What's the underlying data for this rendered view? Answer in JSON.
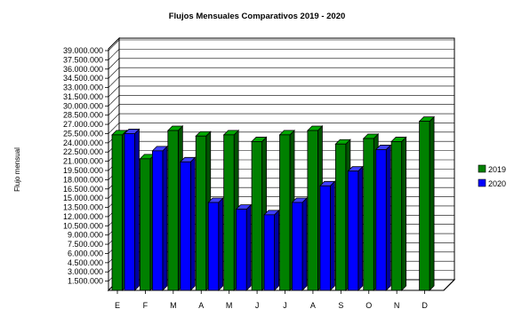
{
  "chart_data": {
    "type": "bar",
    "title": "Flujos Mensuales Comparativos 2019 - 2020",
    "ylabel": "Flujo mensual",
    "xlabel": "",
    "categories": [
      "E",
      "F",
      "M",
      "A",
      "M",
      "J",
      "J",
      "A",
      "S",
      "O",
      "N",
      "D"
    ],
    "y_ticks": [
      "1.500.000",
      "3.000.000",
      "4.500.000",
      "6.000.000",
      "7.500.000",
      "9.000.000",
      "10.500.000",
      "12.000.000",
      "13.500.000",
      "15.000.000",
      "16.500.000",
      "18.000.000",
      "19.500.000",
      "21.000.000",
      "22.500.000",
      "24.000.000",
      "25.500.000",
      "27.000.000",
      "28.500.000",
      "30.000.000",
      "31.500.000",
      "33.000.000",
      "34.500.000",
      "36.000.000",
      "37.500.000",
      "39.000.000"
    ],
    "ylim": [
      0,
      39000000
    ],
    "grid": true,
    "legend_position": "right",
    "series": [
      {
        "name": "2019",
        "color": "#008000",
        "side_color": "#005200",
        "top_color": "#00a800",
        "values": [
          25300000,
          21400000,
          26000000,
          25100000,
          25300000,
          24200000,
          25300000,
          26000000,
          23800000,
          24700000,
          24200000,
          27500000
        ]
      },
      {
        "name": "2020",
        "color": "#0000ff",
        "side_color": "#0000a0",
        "top_color": "#4040ff",
        "values": [
          25500000,
          22700000,
          20900000,
          14300000,
          13200000,
          12300000,
          14300000,
          17000000,
          19400000,
          22900000,
          null,
          null
        ]
      }
    ]
  }
}
